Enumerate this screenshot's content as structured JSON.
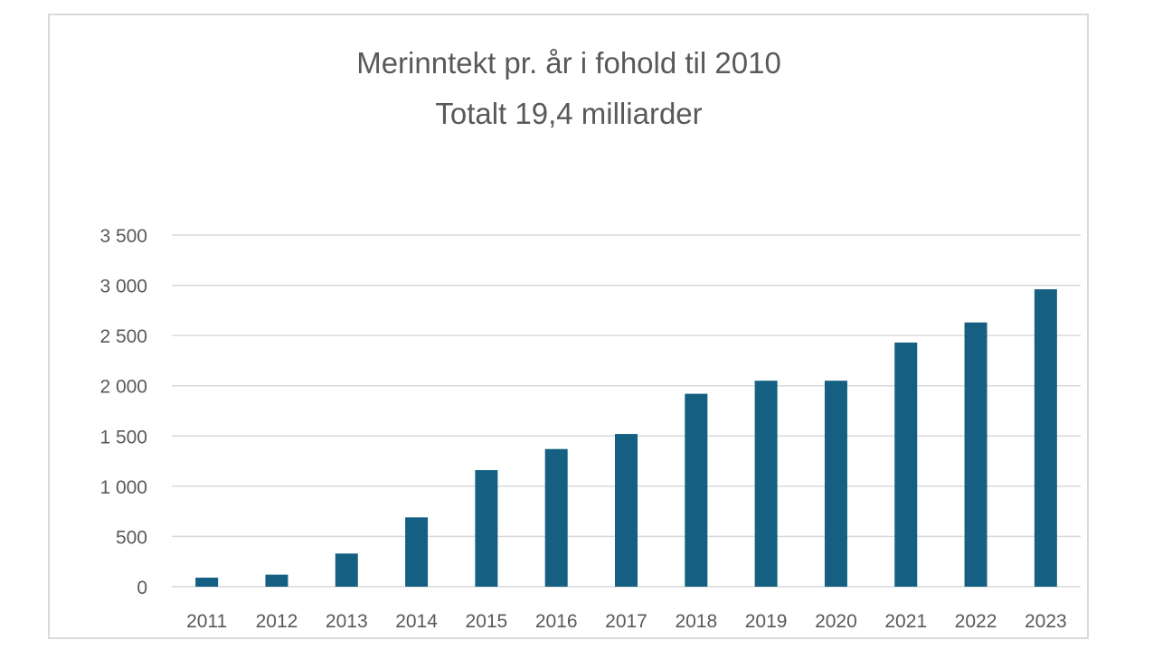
{
  "chart_data": {
    "type": "bar",
    "title": "Merinntekt pr. år i fohold til 2010",
    "subtitle": "Totalt 19,4 milliarder",
    "xlabel": "",
    "ylabel": "",
    "categories": [
      "2011",
      "2012",
      "2013",
      "2014",
      "2015",
      "2016",
      "2017",
      "2018",
      "2019",
      "2020",
      "2021",
      "2022",
      "2023"
    ],
    "values": [
      90,
      120,
      330,
      690,
      1160,
      1370,
      1520,
      1920,
      2050,
      2050,
      2430,
      2630,
      2960
    ],
    "ylim": [
      0,
      3500
    ],
    "yticks": [
      0,
      500,
      1000,
      1500,
      2000,
      2500,
      3000,
      3500
    ],
    "ytick_labels": [
      "0",
      "500",
      "1 000",
      "1 500",
      "2 000",
      "2 500",
      "3 000",
      "3 500"
    ],
    "grid": true,
    "legend": "none",
    "bar_color": "#156082"
  }
}
